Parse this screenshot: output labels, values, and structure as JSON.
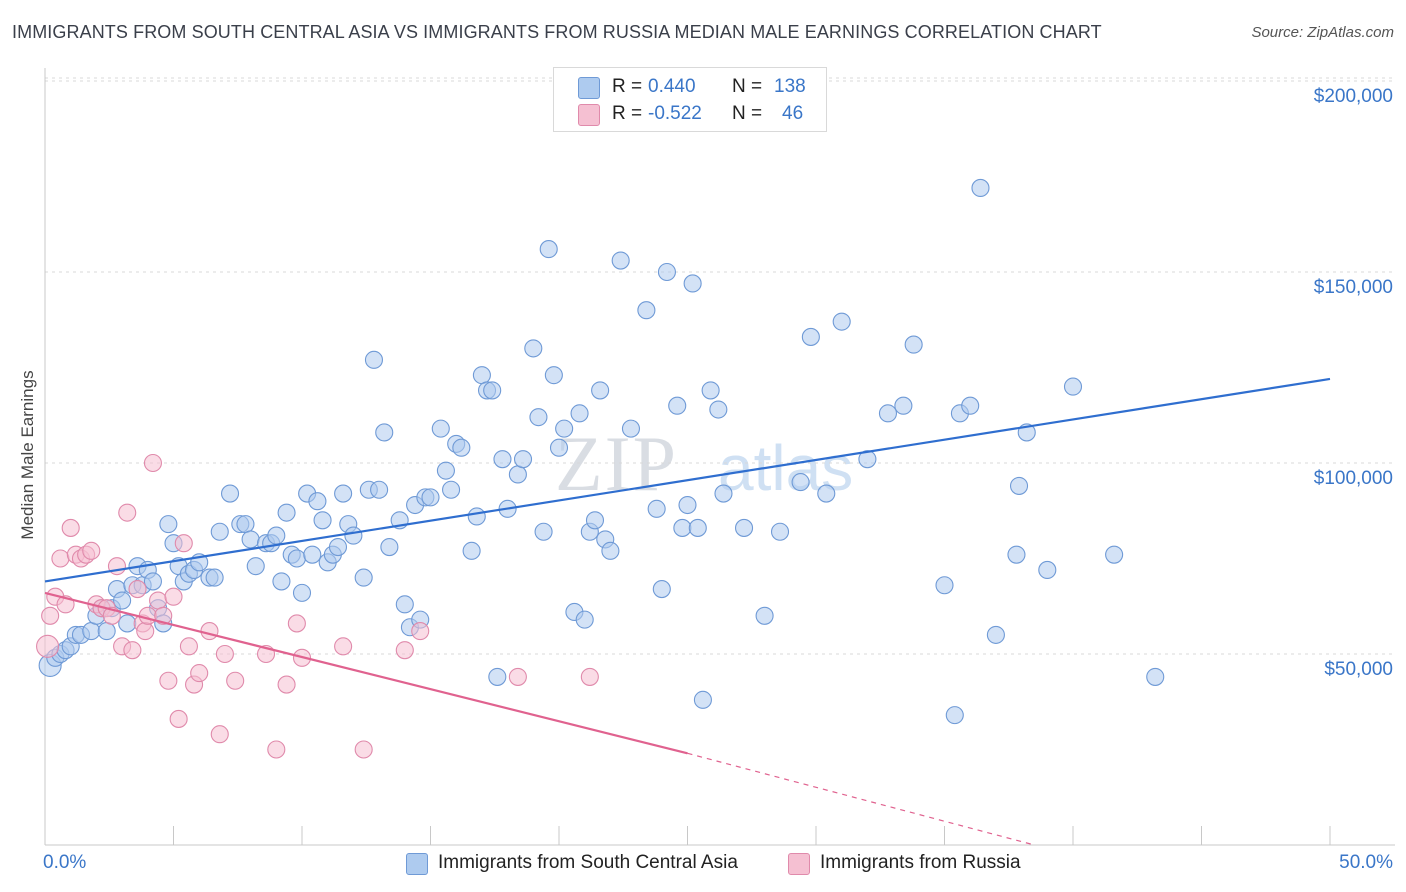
{
  "title": "IMMIGRANTS FROM SOUTH CENTRAL ASIA VS IMMIGRANTS FROM RUSSIA MEDIAN MALE EARNINGS CORRELATION CHART",
  "source": "Source: ZipAtlas.com",
  "watermark": {
    "zip": "ZIP",
    "atlas": "atlas"
  },
  "legend": {
    "series1": {
      "r_label": "R =",
      "r_value": "0.440",
      "n_label": "N =",
      "n_value": "138"
    },
    "series2": {
      "r_label": "R =",
      "r_value": "-0.522",
      "n_label": "N =",
      "n_value": "46"
    }
  },
  "bottom_legend": {
    "series1": "Immigrants from South Central Asia",
    "series2": "Immigrants from Russia"
  },
  "colors": {
    "blue": "#3a76c8",
    "blue_fill": "#aecbef",
    "blue_line": "#2f6ecf",
    "pink": "#d95a8c",
    "pink_fill": "#f5c0d2",
    "pink_line": "#e0628f",
    "grid": "#d8d8d8"
  },
  "chart_data": {
    "type": "scatter",
    "title": "IMMIGRANTS FROM SOUTH CENTRAL ASIA VS IMMIGRANTS FROM RUSSIA MEDIAN MALE EARNINGS CORRELATION CHART",
    "xlabel": "",
    "ylabel": "Median Male Earnings",
    "xlim": [
      0,
      50
    ],
    "ylim": [
      0,
      205000
    ],
    "x_tick_labels": [
      "0.0%",
      "50.0%"
    ],
    "y_ticks": [
      50000,
      100000,
      150000,
      200000
    ],
    "y_tick_labels": [
      "$50,000",
      "$100,000",
      "$150,000",
      "$200,000"
    ],
    "grid": true,
    "series": [
      {
        "name": "Immigrants from South Central Asia",
        "R": 0.44,
        "N": 138,
        "trend": {
          "x": [
            0,
            50
          ],
          "y": [
            69000,
            122000
          ]
        },
        "points": [
          [
            0.2,
            47000
          ],
          [
            0.4,
            49000
          ],
          [
            0.6,
            50000
          ],
          [
            0.8,
            51000
          ],
          [
            1.0,
            52000
          ],
          [
            1.2,
            55000
          ],
          [
            1.4,
            55000
          ],
          [
            1.8,
            56000
          ],
          [
            2.0,
            60000
          ],
          [
            2.2,
            62000
          ],
          [
            2.4,
            56000
          ],
          [
            2.6,
            62000
          ],
          [
            2.8,
            67000
          ],
          [
            3.0,
            64000
          ],
          [
            3.2,
            58000
          ],
          [
            3.4,
            68000
          ],
          [
            3.6,
            73000
          ],
          [
            3.8,
            68000
          ],
          [
            4.0,
            72000
          ],
          [
            4.2,
            69000
          ],
          [
            4.4,
            62000
          ],
          [
            4.6,
            58000
          ],
          [
            4.8,
            84000
          ],
          [
            5.0,
            79000
          ],
          [
            5.2,
            73000
          ],
          [
            5.4,
            69000
          ],
          [
            5.6,
            71000
          ],
          [
            5.8,
            72000
          ],
          [
            6.0,
            74000
          ],
          [
            6.4,
            70000
          ],
          [
            6.6,
            70000
          ],
          [
            6.8,
            82000
          ],
          [
            7.2,
            92000
          ],
          [
            7.6,
            84000
          ],
          [
            7.8,
            84000
          ],
          [
            8.0,
            80000
          ],
          [
            8.2,
            73000
          ],
          [
            8.6,
            79000
          ],
          [
            8.8,
            79000
          ],
          [
            9.0,
            81000
          ],
          [
            9.2,
            69000
          ],
          [
            9.4,
            87000
          ],
          [
            9.6,
            76000
          ],
          [
            9.8,
            75000
          ],
          [
            10.0,
            66000
          ],
          [
            10.2,
            92000
          ],
          [
            10.4,
            76000
          ],
          [
            10.6,
            90000
          ],
          [
            10.8,
            85000
          ],
          [
            11.0,
            74000
          ],
          [
            11.2,
            76000
          ],
          [
            11.4,
            78000
          ],
          [
            11.6,
            92000
          ],
          [
            11.8,
            84000
          ],
          [
            12.0,
            81000
          ],
          [
            12.4,
            70000
          ],
          [
            12.6,
            93000
          ],
          [
            12.8,
            127000
          ],
          [
            13.0,
            93000
          ],
          [
            13.2,
            108000
          ],
          [
            13.4,
            78000
          ],
          [
            13.8,
            85000
          ],
          [
            14.0,
            63000
          ],
          [
            14.2,
            57000
          ],
          [
            14.4,
            89000
          ],
          [
            14.6,
            59000
          ],
          [
            14.8,
            91000
          ],
          [
            15.0,
            91000
          ],
          [
            15.4,
            109000
          ],
          [
            15.6,
            98000
          ],
          [
            15.8,
            93000
          ],
          [
            16.0,
            105000
          ],
          [
            16.2,
            104000
          ],
          [
            16.6,
            77000
          ],
          [
            16.8,
            86000
          ],
          [
            17.0,
            123000
          ],
          [
            17.2,
            119000
          ],
          [
            17.4,
            119000
          ],
          [
            17.6,
            44000
          ],
          [
            17.8,
            101000
          ],
          [
            18.0,
            88000
          ],
          [
            18.4,
            97000
          ],
          [
            18.6,
            101000
          ],
          [
            19.0,
            130000
          ],
          [
            19.2,
            112000
          ],
          [
            19.4,
            82000
          ],
          [
            19.6,
            156000
          ],
          [
            19.8,
            123000
          ],
          [
            20.0,
            104000
          ],
          [
            20.2,
            109000
          ],
          [
            20.6,
            61000
          ],
          [
            20.8,
            113000
          ],
          [
            21.0,
            59000
          ],
          [
            21.2,
            82000
          ],
          [
            21.4,
            85000
          ],
          [
            21.6,
            119000
          ],
          [
            21.8,
            80000
          ],
          [
            22.0,
            77000
          ],
          [
            22.4,
            153000
          ],
          [
            22.8,
            109000
          ],
          [
            23.4,
            140000
          ],
          [
            23.8,
            88000
          ],
          [
            24.0,
            67000
          ],
          [
            24.2,
            150000
          ],
          [
            24.6,
            115000
          ],
          [
            24.8,
            83000
          ],
          [
            25.0,
            89000
          ],
          [
            25.2,
            147000
          ],
          [
            25.4,
            83000
          ],
          [
            25.6,
            38000
          ],
          [
            25.9,
            119000
          ],
          [
            26.2,
            114000
          ],
          [
            26.4,
            92000
          ],
          [
            27.2,
            83000
          ],
          [
            28.0,
            60000
          ],
          [
            28.6,
            82000
          ],
          [
            29.4,
            95000
          ],
          [
            29.8,
            133000
          ],
          [
            30.4,
            92000
          ],
          [
            31.0,
            137000
          ],
          [
            32.0,
            101000
          ],
          [
            32.8,
            113000
          ],
          [
            33.4,
            115000
          ],
          [
            33.8,
            131000
          ],
          [
            35.0,
            68000
          ],
          [
            35.4,
            34000
          ],
          [
            35.6,
            113000
          ],
          [
            36.0,
            115000
          ],
          [
            36.4,
            172000
          ],
          [
            37.0,
            55000
          ],
          [
            37.8,
            76000
          ],
          [
            37.9,
            94000
          ],
          [
            38.2,
            108000
          ],
          [
            39.0,
            72000
          ],
          [
            40.0,
            120000
          ],
          [
            41.6,
            76000
          ],
          [
            43.2,
            44000
          ]
        ]
      },
      {
        "name": "Immigrants from Russia",
        "R": -0.522,
        "N": 46,
        "trend": {
          "x": [
            0,
            25
          ],
          "y": [
            66000,
            24000
          ]
        },
        "trend_dashed": {
          "x": [
            25,
            38.5
          ],
          "y": [
            24000,
            0
          ]
        },
        "points": [
          [
            0.1,
            52000
          ],
          [
            0.2,
            60000
          ],
          [
            0.4,
            65000
          ],
          [
            0.6,
            75000
          ],
          [
            0.8,
            63000
          ],
          [
            1.0,
            83000
          ],
          [
            1.2,
            76000
          ],
          [
            1.4,
            75000
          ],
          [
            1.6,
            76000
          ],
          [
            1.8,
            77000
          ],
          [
            2.0,
            63000
          ],
          [
            2.2,
            62000
          ],
          [
            2.4,
            62000
          ],
          [
            2.6,
            60000
          ],
          [
            2.8,
            73000
          ],
          [
            3.0,
            52000
          ],
          [
            3.2,
            87000
          ],
          [
            3.4,
            51000
          ],
          [
            3.6,
            67000
          ],
          [
            3.8,
            58000
          ],
          [
            3.9,
            56000
          ],
          [
            4.0,
            60000
          ],
          [
            4.2,
            100000
          ],
          [
            4.4,
            64000
          ],
          [
            4.6,
            60000
          ],
          [
            4.8,
            43000
          ],
          [
            5.0,
            65000
          ],
          [
            5.2,
            33000
          ],
          [
            5.4,
            79000
          ],
          [
            5.6,
            52000
          ],
          [
            5.8,
            42000
          ],
          [
            6.0,
            45000
          ],
          [
            6.4,
            56000
          ],
          [
            6.8,
            29000
          ],
          [
            7.0,
            50000
          ],
          [
            7.4,
            43000
          ],
          [
            8.6,
            50000
          ],
          [
            9.0,
            25000
          ],
          [
            9.4,
            42000
          ],
          [
            9.8,
            58000
          ],
          [
            10.0,
            49000
          ],
          [
            11.6,
            52000
          ],
          [
            12.4,
            25000
          ],
          [
            14.0,
            51000
          ],
          [
            14.6,
            56000
          ],
          [
            18.4,
            44000
          ],
          [
            21.2,
            44000
          ]
        ]
      }
    ]
  }
}
